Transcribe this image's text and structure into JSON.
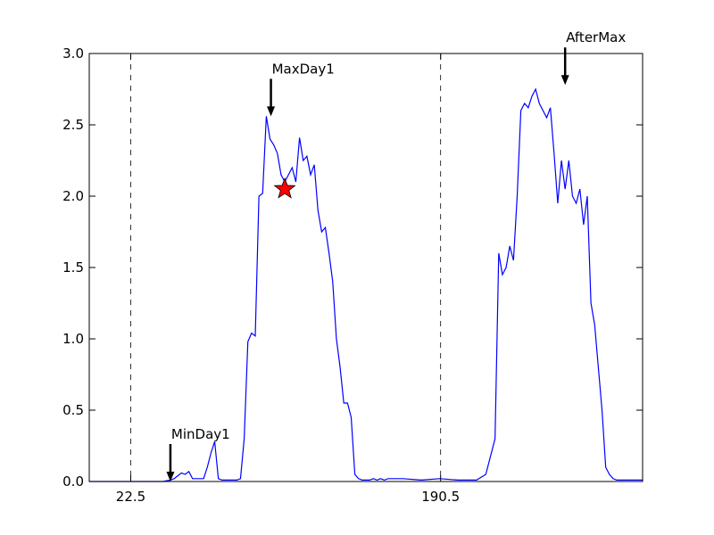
{
  "chart_data": {
    "type": "line",
    "title": "",
    "xlabel": "",
    "ylabel": "",
    "xlim": [
      0,
      300
    ],
    "ylim": [
      0,
      3.0
    ],
    "y_ticks": [
      "0.0",
      "0.5",
      "1.0",
      "1.5",
      "2.0",
      "2.5",
      "3.0"
    ],
    "y_tick_values": [
      0.0,
      0.5,
      1.0,
      1.5,
      2.0,
      2.5,
      3.0
    ],
    "x_ticks": [
      "22.5",
      "190.5"
    ],
    "x_tick_values": [
      22.5,
      190.5
    ],
    "vlines": [
      22.5,
      190.5
    ],
    "line_color": "#0000ff",
    "marker": {
      "x": 106,
      "y": 2.05,
      "color": "#ff0000",
      "shape": "star"
    },
    "annotations": [
      {
        "text": "MinDay1",
        "x": 44,
        "y": 0.0
      },
      {
        "text": "MaxDay1",
        "x": 98.5,
        "y": 2.56
      },
      {
        "text": "AfterMax",
        "x": 258,
        "y": 2.78
      }
    ],
    "x": [
      0,
      10,
      20,
      30,
      40,
      44,
      46,
      48,
      50,
      52,
      54,
      56,
      58,
      60,
      62,
      64,
      66,
      68,
      70,
      72,
      74,
      76,
      78,
      80,
      82,
      84,
      86,
      88,
      90,
      92,
      94,
      96,
      98,
      100,
      102,
      104,
      106,
      108,
      110,
      112,
      114,
      116,
      118,
      120,
      122,
      124,
      126,
      128,
      130,
      132,
      134,
      136,
      138,
      140,
      142,
      144,
      146,
      148,
      150,
      152,
      154,
      156,
      158,
      160,
      162,
      165,
      170,
      180,
      190,
      200,
      210,
      215,
      220,
      222,
      224,
      226,
      228,
      230,
      232,
      234,
      236,
      238,
      240,
      242,
      244,
      246,
      248,
      250,
      252,
      254,
      256,
      258,
      260,
      262,
      264,
      266,
      268,
      270,
      272,
      274,
      276,
      278,
      280,
      282,
      284,
      286,
      288,
      290,
      292,
      294,
      296,
      298,
      300
    ],
    "values": [
      0.0,
      0.0,
      0.0,
      0.0,
      0.0,
      0.01,
      0.02,
      0.04,
      0.06,
      0.05,
      0.07,
      0.02,
      0.02,
      0.02,
      0.02,
      0.1,
      0.2,
      0.28,
      0.02,
      0.01,
      0.01,
      0.01,
      0.01,
      0.01,
      0.02,
      0.3,
      0.98,
      1.04,
      1.02,
      2.0,
      2.02,
      2.56,
      2.4,
      2.36,
      2.3,
      2.15,
      2.1,
      2.15,
      2.2,
      2.1,
      2.41,
      2.25,
      2.28,
      2.15,
      2.22,
      1.9,
      1.75,
      1.78,
      1.6,
      1.4,
      1.0,
      0.8,
      0.55,
      0.55,
      0.45,
      0.05,
      0.02,
      0.01,
      0.01,
      0.01,
      0.02,
      0.01,
      0.02,
      0.01,
      0.02,
      0.02,
      0.02,
      0.01,
      0.02,
      0.01,
      0.01,
      0.05,
      0.3,
      1.6,
      1.45,
      1.5,
      1.65,
      1.55,
      2.0,
      2.6,
      2.65,
      2.62,
      2.7,
      2.75,
      2.65,
      2.6,
      2.55,
      2.62,
      2.3,
      1.95,
      2.25,
      2.05,
      2.25,
      2.0,
      1.95,
      2.05,
      1.8,
      2.0,
      1.25,
      1.1,
      0.8,
      0.5,
      0.1,
      0.05,
      0.02,
      0.01,
      0.01,
      0.01,
      0.01,
      0.01,
      0.01,
      0.01,
      0.01
    ]
  }
}
